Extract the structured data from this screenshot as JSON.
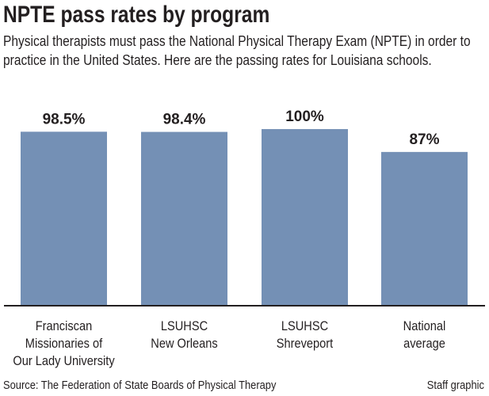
{
  "chart_data": {
    "type": "bar",
    "title": "NPTE pass rates by program",
    "subtitle": "Physical therapists must pass the National Physical Therapy Exam (NPTE) in order to practice in the United States. Here are the passing rates for Louisiana schools.",
    "categories": [
      [
        "Franciscan",
        "Missionaries of",
        "Our Lady University"
      ],
      [
        "LSUHSC",
        "New Orleans"
      ],
      [
        "LSUHSC",
        "Shreveport"
      ],
      [
        "National",
        "average"
      ]
    ],
    "values": [
      98.5,
      98.4,
      100,
      87
    ],
    "data_labels": [
      "98.5%",
      "98.4%",
      "100%",
      "87%"
    ],
    "xlabel": "",
    "ylabel": "",
    "ylim": [
      0,
      100
    ],
    "grid": false,
    "bar_color": "#7490b5"
  },
  "footer": {
    "source": "Source: The Federation of State Boards of Physical Therapy",
    "credit": "Staff graphic"
  }
}
